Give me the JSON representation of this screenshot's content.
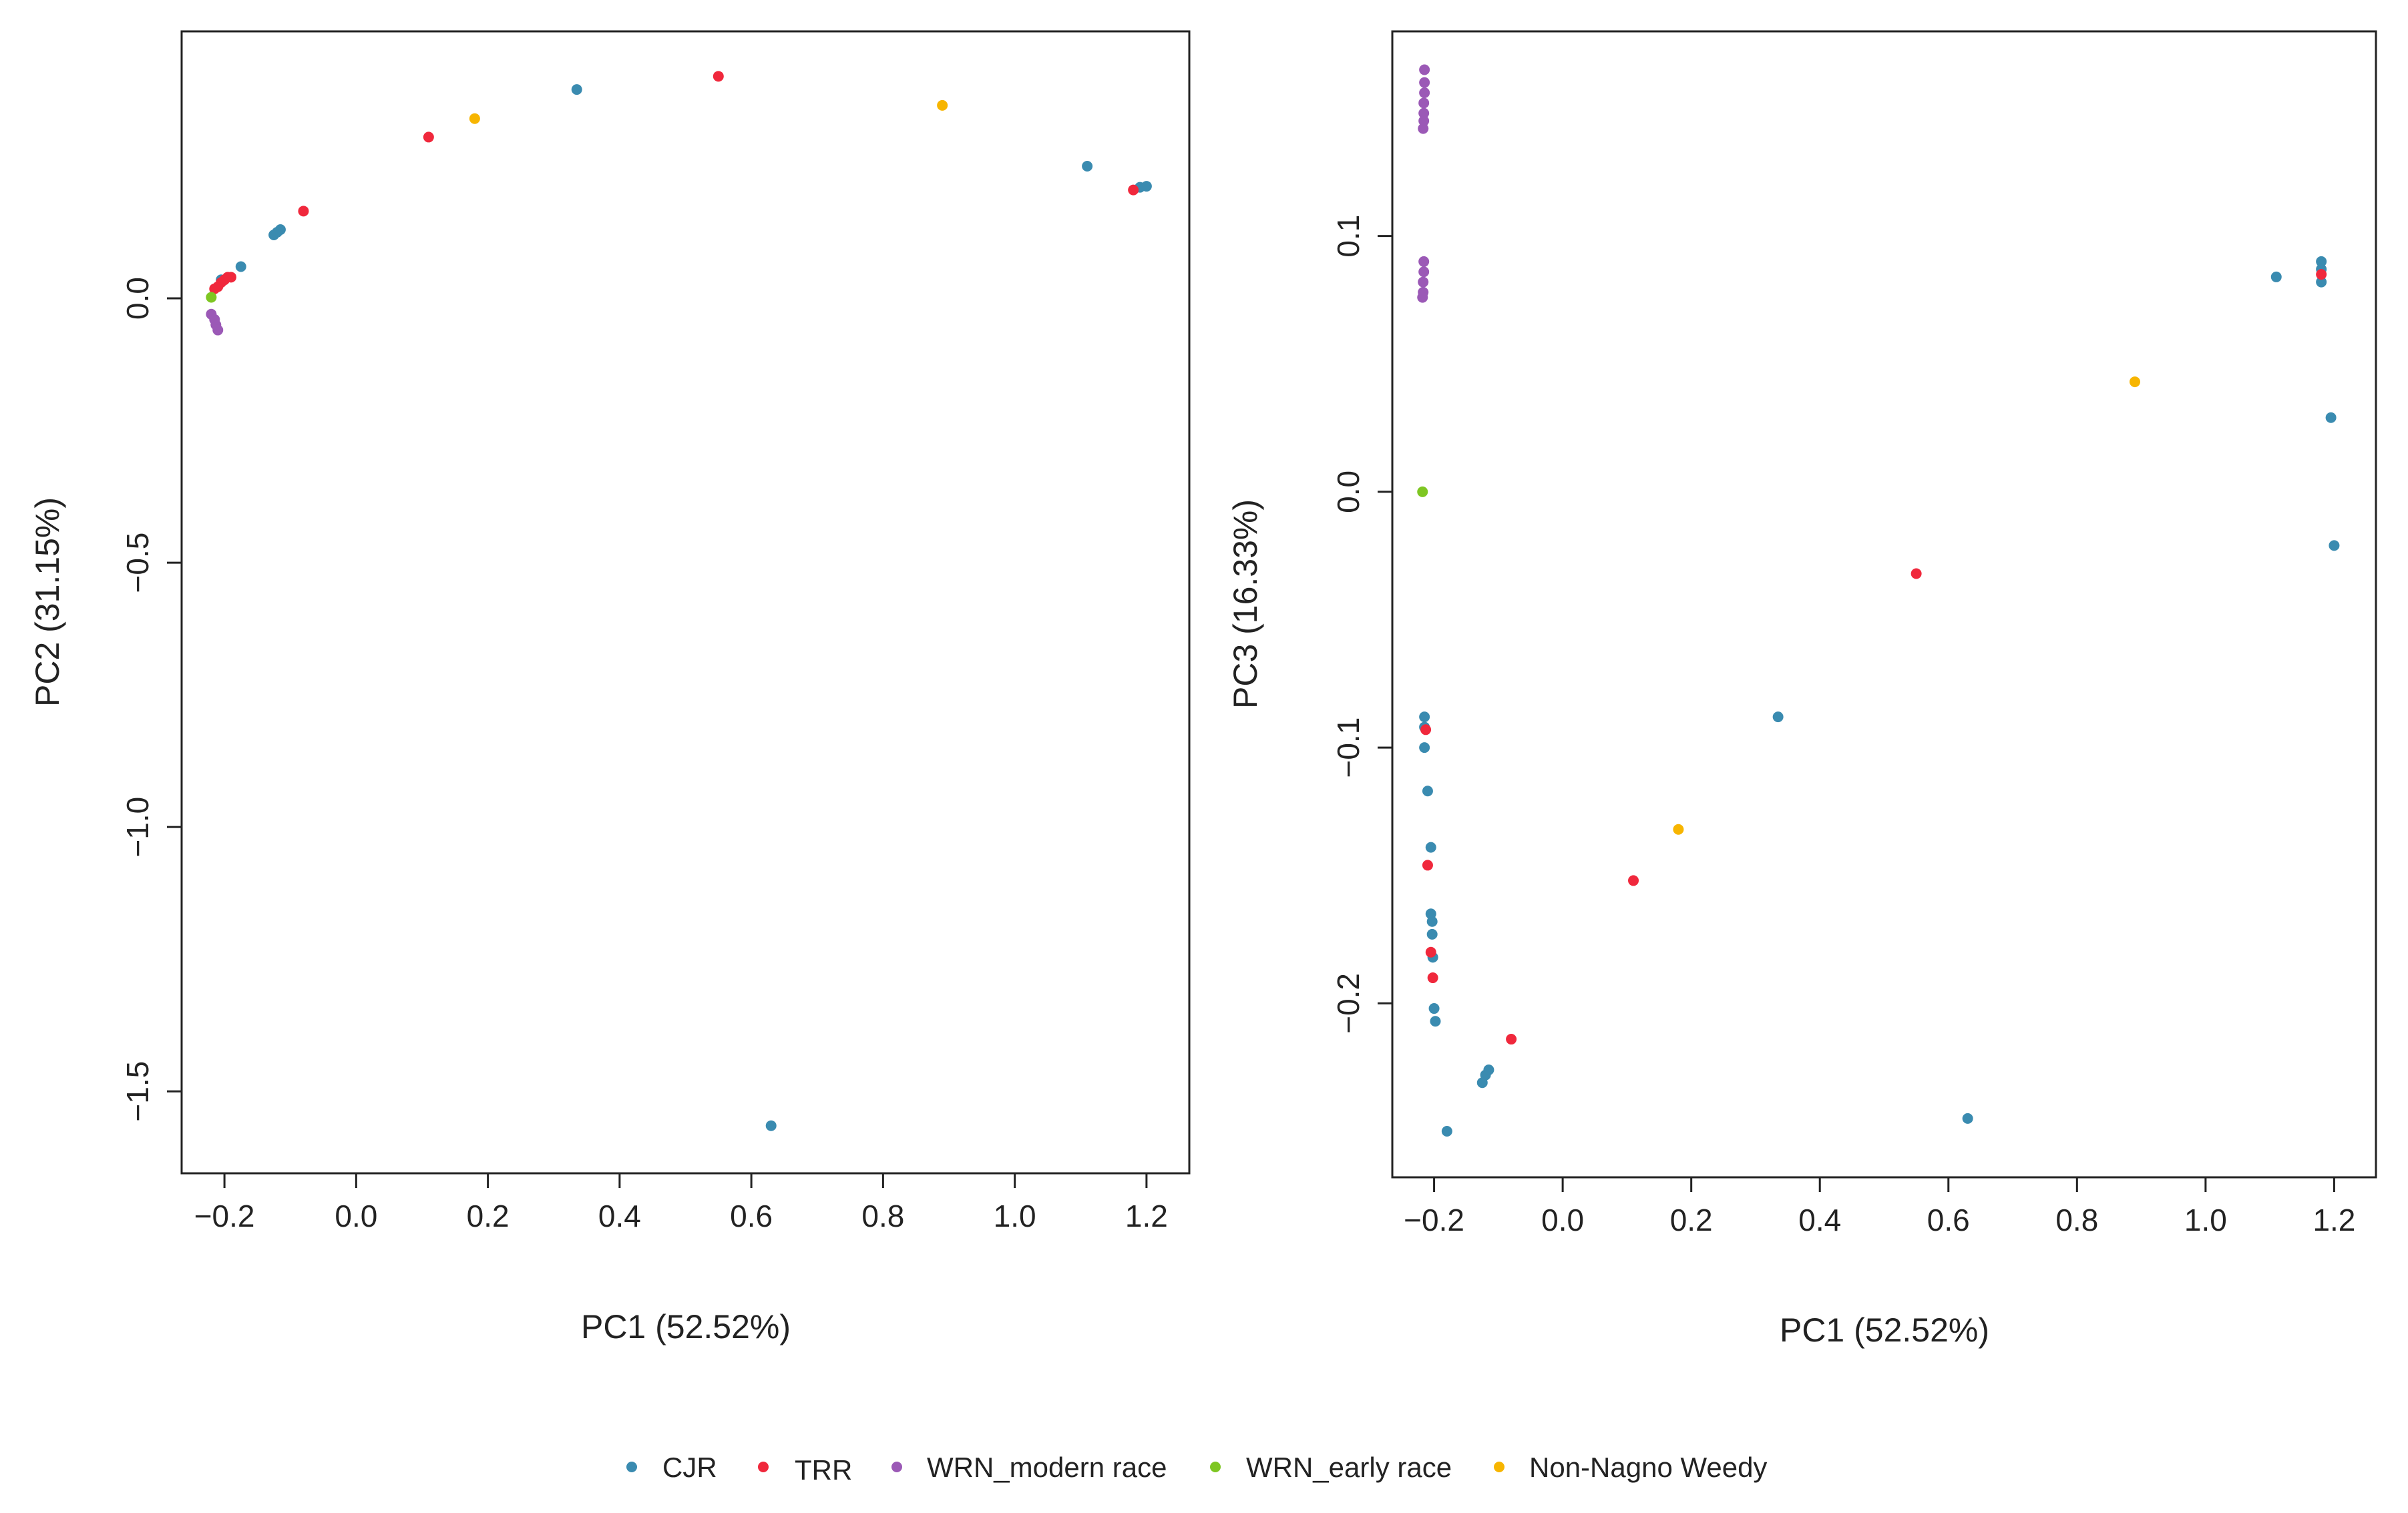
{
  "categories": [
    {
      "key": "CJR",
      "label": "CJR",
      "color": "#3a8bb0"
    },
    {
      "key": "TRR",
      "label": "TRR",
      "color": "#f0283c"
    },
    {
      "key": "WRN_modern",
      "label": "WRN_modern race",
      "color": "#9b59b6"
    },
    {
      "key": "WRN_early",
      "label": "WRN_early race",
      "color": "#7ec622"
    },
    {
      "key": "NonNagno",
      "label": "Non-Nagno Weedy",
      "color": "#f7b500"
    }
  ],
  "chart_data": [
    {
      "type": "scatter",
      "title": "",
      "xlabel": "PC1 (52.52%)",
      "ylabel": "PC2 (31.15%)",
      "xlim": [
        -0.265,
        1.265
      ],
      "ylim": [
        -1.655,
        0.505
      ],
      "xticks": [
        -0.2,
        0.0,
        0.2,
        0.4,
        0.6,
        0.8,
        1.0,
        1.2
      ],
      "xtick_labels": [
        "−0.2",
        "0.0",
        "0.2",
        "0.4",
        "0.6",
        "0.8",
        "1.0",
        "1.2"
      ],
      "yticks": [
        0.0,
        -0.5,
        -1.0,
        -1.5
      ],
      "ytick_labels": [
        "0.0",
        "−0.5",
        "−1.0",
        "−1.5"
      ],
      "series": [
        {
          "name": "CJR",
          "points": [
            [
              0.335,
              0.395
            ],
            [
              1.11,
              0.25
            ],
            [
              1.19,
              0.21
            ],
            [
              1.2,
              0.212
            ],
            [
              -0.175,
              0.06
            ],
            [
              -0.12,
              0.125
            ],
            [
              -0.125,
              0.12
            ],
            [
              -0.115,
              0.13
            ],
            [
              -0.205,
              0.035
            ],
            [
              0.63,
              -1.565
            ]
          ]
        },
        {
          "name": "TRR",
          "points": [
            [
              0.55,
              0.42
            ],
            [
              0.11,
              0.305
            ],
            [
              -0.08,
              0.165
            ],
            [
              1.18,
              0.205
            ],
            [
              -0.195,
              0.04
            ],
            [
              -0.2,
              0.035
            ],
            [
              -0.205,
              0.03
            ],
            [
              -0.21,
              0.022
            ],
            [
              -0.215,
              0.018
            ],
            [
              -0.19,
              0.04
            ]
          ]
        },
        {
          "name": "WRN_modern race",
          "points": [
            [
              -0.22,
              -0.03
            ],
            [
              -0.215,
              -0.04
            ],
            [
              -0.213,
              -0.05
            ],
            [
              -0.21,
              -0.06
            ]
          ]
        },
        {
          "name": "WRN_early race",
          "points": [
            [
              -0.22,
              0.002
            ]
          ]
        },
        {
          "name": "Non-Nagno Weedy",
          "points": [
            [
              0.18,
              0.34
            ],
            [
              0.89,
              0.365
            ]
          ]
        }
      ]
    },
    {
      "type": "scatter",
      "title": "",
      "xlabel": "PC1 (52.52%)",
      "ylabel": "PC3 (16.33%)",
      "xlim": [
        -0.265,
        1.265
      ],
      "ylim": [
        -0.268,
        0.18
      ],
      "xticks": [
        -0.2,
        0.0,
        0.2,
        0.4,
        0.6,
        0.8,
        1.0,
        1.2
      ],
      "xtick_labels": [
        "−0.2",
        "0.0",
        "0.2",
        "0.4",
        "0.6",
        "0.8",
        "1.0",
        "1.2"
      ],
      "yticks": [
        0.1,
        0.0,
        -0.1,
        -0.2
      ],
      "ytick_labels": [
        "0.1",
        "0.0",
        "−0.1",
        "−0.2"
      ],
      "series": [
        {
          "name": "CJR",
          "points": [
            [
              1.11,
              0.084
            ],
            [
              1.18,
              0.09
            ],
            [
              1.18,
              0.087
            ],
            [
              1.18,
              0.082
            ],
            [
              1.195,
              0.029
            ],
            [
              1.2,
              -0.021
            ],
            [
              0.335,
              -0.088
            ],
            [
              0.63,
              -0.245
            ],
            [
              -0.215,
              -0.088
            ],
            [
              -0.215,
              -0.092
            ],
            [
              -0.215,
              -0.1
            ],
            [
              -0.21,
              -0.117
            ],
            [
              -0.205,
              -0.139
            ],
            [
              -0.205,
              -0.165
            ],
            [
              -0.203,
              -0.168
            ],
            [
              -0.203,
              -0.173
            ],
            [
              -0.202,
              -0.182
            ],
            [
              -0.2,
              -0.202
            ],
            [
              -0.198,
              -0.207
            ],
            [
              -0.12,
              -0.228
            ],
            [
              -0.115,
              -0.226
            ],
            [
              -0.125,
              -0.231
            ],
            [
              -0.18,
              -0.25
            ]
          ]
        },
        {
          "name": "TRR",
          "points": [
            [
              0.55,
              -0.032
            ],
            [
              0.11,
              -0.152
            ],
            [
              -0.08,
              -0.214
            ],
            [
              1.18,
              0.085
            ],
            [
              -0.213,
              -0.093
            ],
            [
              -0.21,
              -0.146
            ],
            [
              -0.205,
              -0.18
            ],
            [
              -0.202,
              -0.19
            ]
          ]
        },
        {
          "name": "WRN_modern race",
          "points": [
            [
              -0.215,
              0.165
            ],
            [
              -0.215,
              0.16
            ],
            [
              -0.215,
              0.156
            ],
            [
              -0.216,
              0.152
            ],
            [
              -0.216,
              0.148
            ],
            [
              -0.216,
              0.145
            ],
            [
              -0.217,
              0.142
            ],
            [
              -0.216,
              0.09
            ],
            [
              -0.216,
              0.086
            ],
            [
              -0.217,
              0.082
            ],
            [
              -0.217,
              0.078
            ],
            [
              -0.218,
              0.076
            ]
          ]
        },
        {
          "name": "WRN_early race",
          "points": [
            [
              -0.218,
              0.0
            ]
          ]
        },
        {
          "name": "Non-Nagno Weedy",
          "points": [
            [
              0.18,
              -0.132
            ],
            [
              0.89,
              0.043
            ]
          ]
        }
      ]
    }
  ]
}
